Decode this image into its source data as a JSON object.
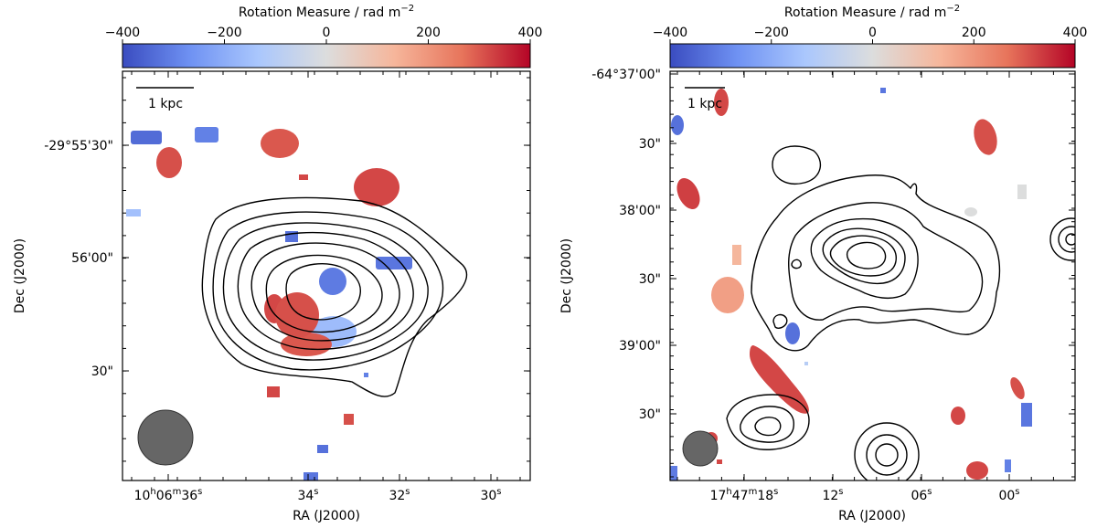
{
  "colors": {
    "colormap": [
      "#3a4cc0",
      "#6f92f3",
      "#aac7fd",
      "#dcdddd",
      "#f6b69b",
      "#e7745b",
      "#b40426"
    ],
    "contour": "#000000",
    "beam": "#666666"
  },
  "chart_data": [
    {
      "type": "heatmap",
      "description_panel": "left",
      "colorbar": {
        "title": "Rotation Measure / rad m",
        "title_superscript": "−2",
        "range": [
          -400,
          400
        ],
        "ticks": [
          "−400",
          "−200",
          "0",
          "200",
          "400"
        ],
        "tick_values": [
          -400,
          -200,
          0,
          200,
          400
        ]
      },
      "xlabel": "RA (J2000)",
      "ylabel": "Dec (J2000)",
      "x_ticks": [
        {
          "main": "10",
          "sup1": "h",
          "main2": "06",
          "sup2": "m",
          "main3": "36",
          "sup3": "s"
        },
        {
          "main": "34",
          "sup": "s"
        },
        {
          "main": "32",
          "sup": "s"
        },
        {
          "main": "30",
          "sup": "s"
        }
      ],
      "y_ticks": [
        "-29°55'30\"",
        "56'00\"",
        "30\""
      ],
      "scalebar_label": "1 kpc",
      "grid": false,
      "contours": "total intensity contours (7 levels)",
      "rm_patches_rad_m2": [
        -340,
        -300,
        -150,
        310,
        300,
        320,
        -320,
        320,
        -330,
        -310,
        -160,
        320,
        300,
        310,
        320,
        -330,
        -320,
        310,
        -300
      ]
    },
    {
      "type": "heatmap",
      "description_panel": "right",
      "colorbar": {
        "title": "Rotation Measure / rad m",
        "title_superscript": "−2",
        "range": [
          -400,
          400
        ],
        "ticks": [
          "−400",
          "−200",
          "0",
          "200",
          "400"
        ],
        "tick_values": [
          -400,
          -200,
          0,
          200,
          400
        ]
      },
      "xlabel": "RA (J2000)",
      "ylabel": "Dec (J2000)",
      "x_ticks": [
        {
          "main": "17",
          "sup1": "h",
          "main2": "47",
          "sup2": "m",
          "main3": "18",
          "sup3": "s"
        },
        {
          "main": "12",
          "sup": "s"
        },
        {
          "main": "06",
          "sup": "s"
        },
        {
          "main": "00",
          "sup": "s"
        }
      ],
      "y_ticks": [
        "-64°37'00\"",
        "30\"",
        "38'00\"",
        "30\"",
        "39'00\"",
        "30\""
      ],
      "scalebar_label": "1 kpc",
      "grid": false,
      "contours": "total intensity contours",
      "rm_patches_rad_m2": [
        -330,
        320,
        330,
        -320,
        310,
        0,
        0,
        130,
        180,
        -330,
        320,
        -100,
        310,
        320,
        -320,
        320,
        -300,
        -310,
        320,
        320
      ]
    }
  ]
}
